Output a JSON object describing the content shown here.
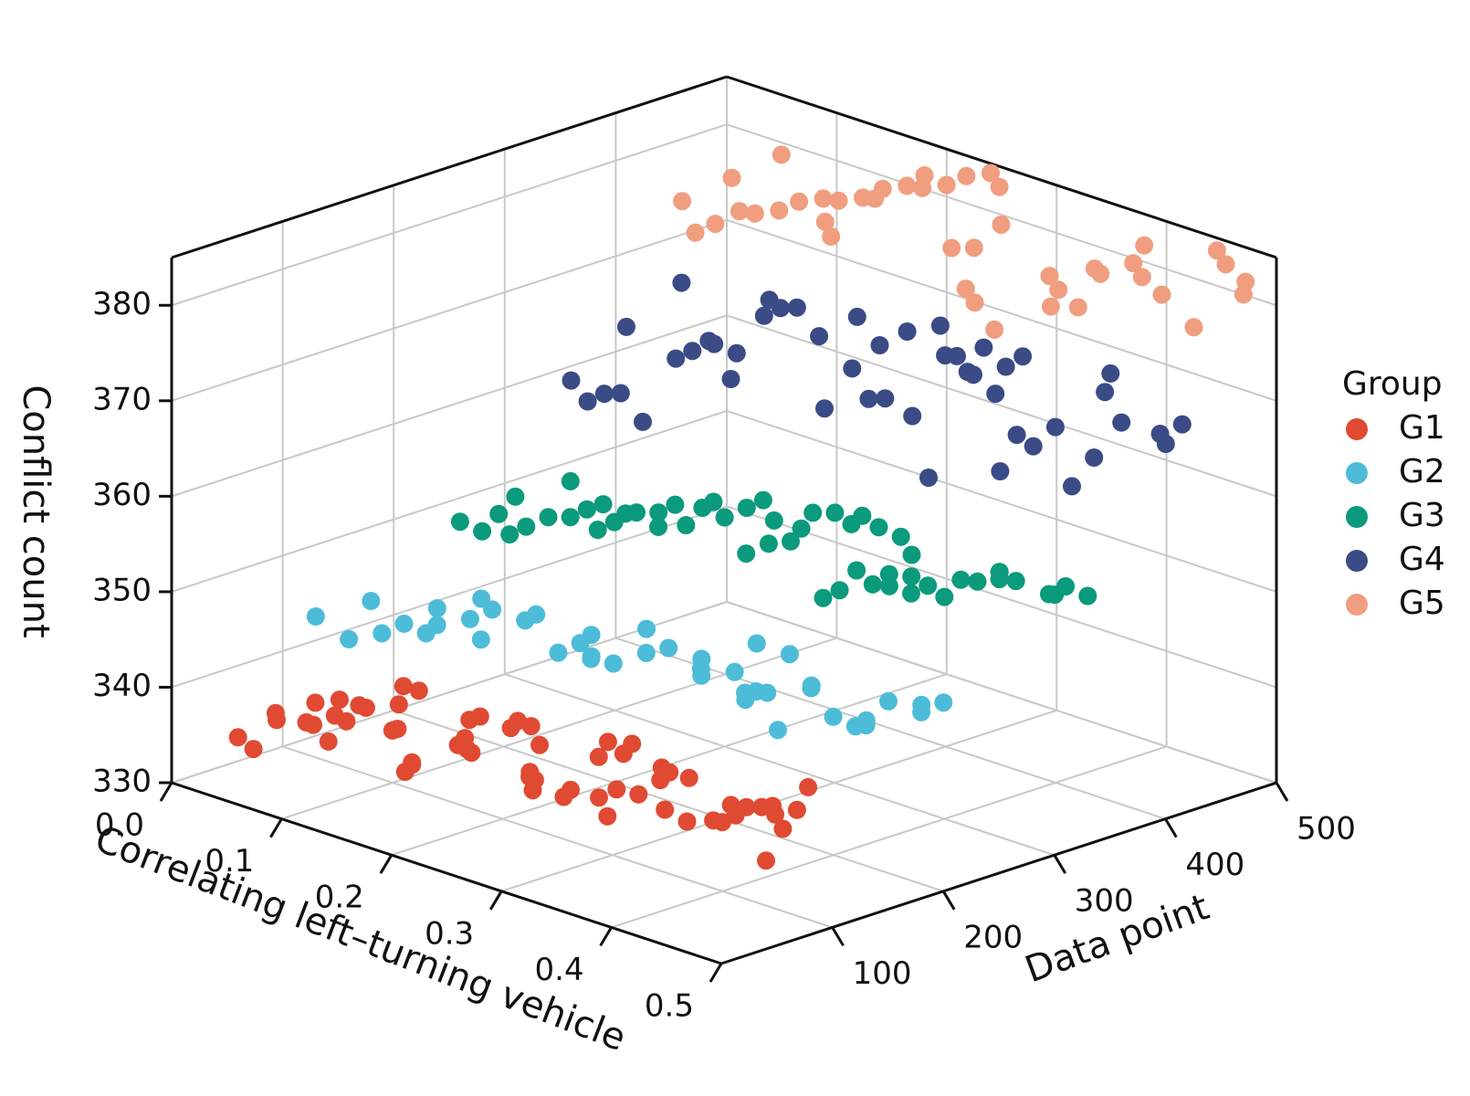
{
  "chart_data": {
    "type": "scatter3d",
    "title": "",
    "zlabel": "Conflict count",
    "xlabel": "Correlating left–turning vehicle",
    "ylabel": "Data point",
    "xlim": [
      0.0,
      0.5
    ],
    "ylim": [
      0,
      500
    ],
    "zlim": [
      330,
      385
    ],
    "z_ticks": [
      "330",
      "340",
      "350",
      "360",
      "370",
      "380"
    ],
    "x_ticks": [
      "0.0",
      "0.1",
      "0.2",
      "0.3",
      "0.4",
      "0.5"
    ],
    "y_ticks": [
      "100",
      "200",
      "300",
      "400",
      "500"
    ],
    "legend": {
      "title": "Group",
      "position": "right",
      "entries": [
        {
          "name": "G1",
          "color": "#e04a32"
        },
        {
          "name": "G2",
          "color": "#4dbcd9"
        },
        {
          "name": "G3",
          "color": "#0b9a7c"
        },
        {
          "name": "G4",
          "color": "#3a4b86"
        },
        {
          "name": "G5",
          "color": "#f09e7f"
        }
      ]
    },
    "series": [
      {
        "name": "G1",
        "color": "#e04a32",
        "z_range": [
          333,
          345
        ],
        "x": [
          0.02,
          0.04,
          0.06,
          0.08,
          0.1,
          0.12,
          0.14,
          0.16,
          0.18,
          0.2,
          0.22,
          0.24,
          0.26,
          0.28,
          0.3,
          0.32,
          0.34,
          0.36,
          0.38,
          0.4,
          0.42,
          0.44,
          0.46,
          0.48,
          0.03,
          0.07,
          0.11,
          0.15,
          0.19,
          0.23,
          0.27,
          0.31,
          0.35,
          0.39,
          0.43,
          0.47,
          0.05,
          0.09,
          0.13,
          0.17,
          0.21,
          0.25,
          0.29,
          0.33,
          0.37,
          0.41,
          0.45,
          0.49,
          0.03,
          0.08,
          0.13,
          0.18,
          0.23,
          0.28,
          0.33,
          0.38,
          0.43,
          0.48,
          0.06,
          0.16,
          0.26,
          0.36,
          0.46
        ],
        "y": [
          40,
          55,
          70,
          62,
          48,
          80,
          66,
          58,
          90,
          72,
          60,
          85,
          74,
          50,
          96,
          68,
          78,
          64,
          88,
          70,
          92,
          82,
          76,
          98,
          44,
          52,
          60,
          68,
          76,
          84,
          92,
          100,
          46,
          54,
          62,
          70,
          78,
          86,
          94,
          42,
          50,
          58,
          66,
          74,
          82,
          90,
          98,
          56,
          64,
          72,
          80,
          88,
          96,
          48,
          58,
          68,
          78,
          88,
          98,
          45,
          65,
          85,
          95
        ],
        "z": [
          334,
          336,
          338,
          335,
          339,
          337,
          341,
          336,
          340,
          338,
          343,
          337,
          341,
          339,
          342,
          338,
          344,
          340,
          337,
          343,
          339,
          341,
          342,
          344,
          333,
          337,
          340,
          335,
          339,
          342,
          336,
          341,
          338,
          343,
          340,
          337,
          335,
          338,
          341,
          336,
          340,
          343,
          337,
          339,
          342,
          338,
          340,
          344,
          336,
          339,
          342,
          337,
          341,
          338,
          343,
          339,
          341,
          342,
          335,
          340,
          338,
          342,
          339
        ]
      },
      {
        "name": "G2",
        "color": "#4dbcd9",
        "z_range": [
          340,
          350
        ],
        "x": [
          0.02,
          0.05,
          0.08,
          0.11,
          0.14,
          0.17,
          0.2,
          0.23,
          0.26,
          0.29,
          0.32,
          0.35,
          0.38,
          0.41,
          0.44,
          0.47,
          0.04,
          0.1,
          0.16,
          0.22,
          0.28,
          0.34,
          0.4,
          0.46,
          0.06,
          0.12,
          0.18,
          0.24,
          0.3,
          0.36,
          0.42,
          0.48,
          0.07,
          0.13,
          0.19,
          0.25,
          0.31,
          0.37,
          0.43,
          0.49,
          0.09,
          0.21,
          0.33,
          0.45
        ],
        "y": [
          110,
          130,
          150,
          170,
          140,
          160,
          180,
          150,
          170,
          190,
          160,
          180,
          200,
          170,
          190,
          210,
          120,
          140,
          160,
          180,
          200,
          220,
          150,
          170,
          130,
          150,
          170,
          190,
          210,
          160,
          180,
          200,
          140,
          160,
          180,
          200,
          220,
          170,
          190,
          210,
          150,
          170,
          190,
          200
        ],
        "z": [
          344,
          346,
          343,
          347,
          345,
          348,
          344,
          346,
          347,
          345,
          348,
          346,
          347,
          349,
          346,
          348,
          342,
          345,
          347,
          344,
          346,
          348,
          345,
          347,
          343,
          346,
          344,
          348,
          345,
          347,
          346,
          348,
          344,
          347,
          345,
          346,
          348,
          347,
          345,
          349,
          346,
          347,
          344,
          348
        ]
      },
      {
        "name": "G3",
        "color": "#0b9a7c",
        "z_range": [
          345,
          360
        ],
        "x": [
          0.02,
          0.05,
          0.08,
          0.11,
          0.14,
          0.17,
          0.2,
          0.23,
          0.26,
          0.29,
          0.32,
          0.35,
          0.38,
          0.41,
          0.44,
          0.47,
          0.03,
          0.09,
          0.15,
          0.21,
          0.27,
          0.33,
          0.39,
          0.45,
          0.04,
          0.1,
          0.16,
          0.22,
          0.28,
          0.34,
          0.4,
          0.46,
          0.06,
          0.12,
          0.18,
          0.24,
          0.3,
          0.36,
          0.42,
          0.48,
          0.07,
          0.13,
          0.19,
          0.25,
          0.31,
          0.37,
          0.43,
          0.49,
          0.08,
          0.14,
          0.2,
          0.26,
          0.32,
          0.38,
          0.44,
          0.5
        ],
        "y": [
          240,
          260,
          280,
          300,
          250,
          270,
          290,
          310,
          260,
          280,
          300,
          320,
          270,
          290,
          310,
          330,
          250,
          270,
          290,
          310,
          330,
          260,
          280,
          300,
          255,
          275,
          295,
          315,
          335,
          265,
          285,
          305,
          245,
          265,
          285,
          305,
          325,
          275,
          295,
          315,
          250,
          270,
          290,
          310,
          330,
          280,
          300,
          320,
          260,
          280,
          300,
          320,
          340,
          290,
          310,
          330
        ],
        "z": [
          349,
          352,
          354,
          351,
          355,
          353,
          356,
          352,
          354,
          357,
          353,
          355,
          356,
          354,
          357,
          355,
          348,
          351,
          353,
          355,
          356,
          352,
          354,
          357,
          350,
          352,
          354,
          356,
          355,
          353,
          355,
          357,
          349,
          351,
          353,
          355,
          357,
          354,
          356,
          356,
          350,
          352,
          355,
          353,
          356,
          354,
          356,
          357,
          351,
          353,
          354,
          356,
          355,
          355,
          357,
          356
        ]
      },
      {
        "name": "G4",
        "color": "#3a4b86",
        "z_range": [
          355,
          377
        ],
        "x": [
          0.02,
          0.05,
          0.08,
          0.11,
          0.14,
          0.17,
          0.2,
          0.23,
          0.26,
          0.29,
          0.32,
          0.35,
          0.38,
          0.41,
          0.44,
          0.47,
          0.03,
          0.09,
          0.15,
          0.21,
          0.27,
          0.33,
          0.39,
          0.45,
          0.04,
          0.1,
          0.16,
          0.22,
          0.28,
          0.34,
          0.4,
          0.46,
          0.06,
          0.12,
          0.18,
          0.24,
          0.3,
          0.36,
          0.42,
          0.48,
          0.07,
          0.13,
          0.19,
          0.25,
          0.31,
          0.37,
          0.43,
          0.49
        ],
        "y": [
          340,
          360,
          380,
          400,
          350,
          370,
          390,
          410,
          360,
          380,
          400,
          420,
          370,
          390,
          410,
          430,
          345,
          365,
          385,
          405,
          425,
          355,
          375,
          395,
          350,
          370,
          390,
          410,
          430,
          360,
          380,
          400,
          345,
          365,
          385,
          405,
          425,
          375,
          395,
          415,
          355,
          375,
          395,
          415,
          435,
          385,
          405,
          425
        ],
        "z": [
          360,
          366,
          371,
          364,
          368,
          373,
          362,
          369,
          375,
          365,
          370,
          372,
          363,
          368,
          374,
          367,
          358,
          364,
          370,
          366,
          372,
          361,
          367,
          373,
          359,
          365,
          371,
          363,
          369,
          374,
          366,
          370,
          360,
          367,
          372,
          364,
          368,
          375,
          362,
          369,
          357,
          363,
          369,
          371,
          366,
          373,
          365,
          370
        ]
      },
      {
        "name": "G5",
        "color": "#f09e7f",
        "z_range": [
          370,
          385
        ],
        "x": [
          0.02,
          0.05,
          0.08,
          0.11,
          0.14,
          0.17,
          0.2,
          0.23,
          0.26,
          0.29,
          0.32,
          0.35,
          0.38,
          0.41,
          0.44,
          0.47,
          0.03,
          0.09,
          0.15,
          0.21,
          0.27,
          0.33,
          0.39,
          0.45,
          0.04,
          0.1,
          0.16,
          0.22,
          0.28,
          0.34,
          0.4,
          0.46,
          0.06,
          0.12,
          0.18,
          0.24,
          0.3,
          0.36,
          0.42,
          0.48,
          0.07,
          0.13,
          0.19,
          0.25
        ],
        "y": [
          440,
          455,
          470,
          485,
          450,
          465,
          480,
          495,
          445,
          460,
          475,
          490,
          455,
          470,
          485,
          500,
          442,
          458,
          474,
          490,
          448,
          464,
          480,
          496,
          450,
          466,
          482,
          498,
          446,
          462,
          478,
          494,
          452,
          468,
          484,
          500,
          444,
          460,
          476,
          492,
          456,
          472,
          488,
          498
        ],
        "z": [
          375,
          378,
          381,
          373,
          377,
          380,
          383,
          376,
          379,
          382,
          374,
          378,
          381,
          384,
          376,
          380,
          372,
          376,
          379,
          382,
          375,
          378,
          381,
          384,
          373,
          377,
          380,
          383,
          374,
          377,
          380,
          383,
          375,
          378,
          381,
          384,
          372,
          376,
          379,
          382,
          375,
          378,
          381,
          383
        ]
      }
    ]
  }
}
